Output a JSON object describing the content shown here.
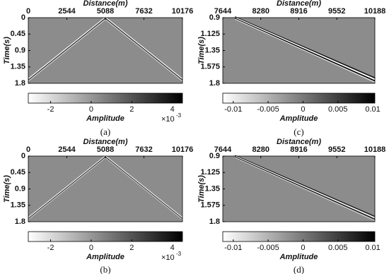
{
  "chart_data": [
    {
      "type": "seismic",
      "xlabel": "Distance(m)",
      "ylabel": "Time(s)",
      "xlim": [
        0,
        10176
      ],
      "xticks": [
        0,
        2544,
        5088,
        7632,
        10176
      ],
      "ylim": [
        0,
        1.8
      ],
      "yticks": [
        0,
        0.45,
        0.9,
        1.35,
        1.8
      ],
      "y_inverted": true,
      "colorbar": {
        "label": "Amplitude",
        "lim": [
          -3.1,
          4.5
        ],
        "ticks": [
          -2,
          0,
          2,
          4
        ],
        "scale": {
          "base": "×10",
          "exponent": "-3"
        }
      },
      "caption": "(a)"
    },
    {
      "type": "seismic",
      "xlabel": "Distance(m)",
      "ylabel": "Time(s)",
      "xlim": [
        7644,
        10188
      ],
      "xticks": [
        7644,
        8280,
        8916,
        9552,
        10188
      ],
      "ylim": [
        0.9,
        1.8
      ],
      "yticks": [
        0.9,
        1.125,
        1.35,
        1.575,
        1.8
      ],
      "y_inverted": true,
      "colorbar": {
        "label": "Amplitude",
        "lim": [
          -0.0115,
          0.0103
        ],
        "ticks": [
          -0.01,
          -0.005,
          0,
          0.005,
          0.01
        ]
      },
      "caption": "(c)"
    },
    {
      "type": "seismic",
      "xlabel": "Distance(m)",
      "ylabel": "Time(s)",
      "xlim": [
        0,
        10176
      ],
      "xticks": [
        0,
        2544,
        5088,
        7632,
        10176
      ],
      "ylim": [
        0,
        1.8
      ],
      "yticks": [
        0,
        0.45,
        0.9,
        1.35,
        1.8
      ],
      "y_inverted": true,
      "colorbar": {
        "label": "Amplitude",
        "lim": [
          -3.1,
          4.5
        ],
        "ticks": [
          -2,
          0,
          2,
          4
        ],
        "scale": {
          "base": "×10",
          "exponent": "-3"
        }
      },
      "caption": "(b)"
    },
    {
      "type": "seismic",
      "xlabel": "Distance(m)",
      "ylabel": "Time(s)",
      "xlim": [
        7644,
        10188
      ],
      "xticks": [
        7644,
        8280,
        8916,
        9552,
        10188
      ],
      "ylim": [
        0.9,
        1.8
      ],
      "yticks": [
        0.9,
        1.125,
        1.35,
        1.575,
        1.8
      ],
      "y_inverted": true,
      "colorbar": {
        "label": "Amplitude",
        "lim": [
          -0.0115,
          0.0103
        ],
        "ticks": [
          -0.01,
          -0.005,
          0,
          0.005,
          0.01
        ]
      },
      "caption": "(d)"
    }
  ]
}
